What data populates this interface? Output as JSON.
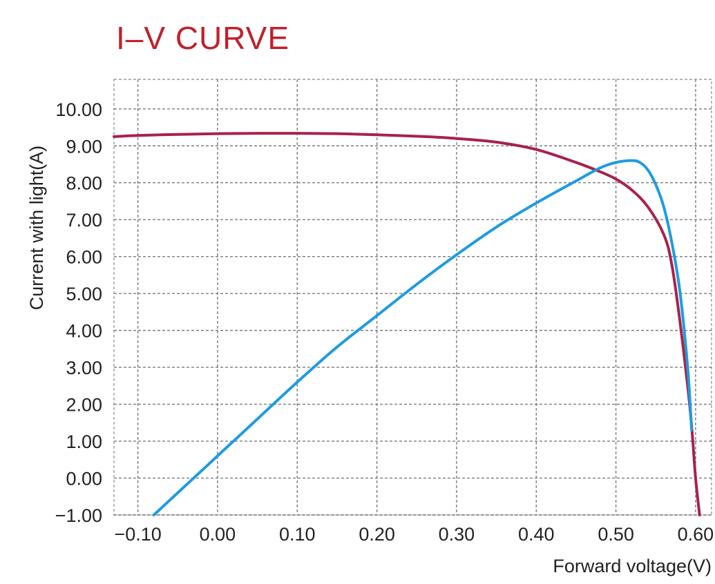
{
  "chart_data": {
    "type": "line",
    "title": "I–V  CURVE",
    "xlabel": "Forward voltage(V)",
    "ylabel": "Current with light(A)",
    "xlim": [
      -0.13,
      0.62
    ],
    "ylim": [
      -1.0,
      10.8
    ],
    "xticks": [
      -0.1,
      0.0,
      0.1,
      0.2,
      0.3,
      0.4,
      0.5,
      0.6
    ],
    "xtick_labels": [
      "−0.10",
      "0.00",
      "0.10",
      "0.20",
      "0.30",
      "0.40",
      "0.50",
      "0.60"
    ],
    "yticks": [
      -1,
      0,
      1,
      2,
      3,
      4,
      5,
      6,
      7,
      8,
      9,
      10
    ],
    "ytick_labels": [
      "−1.00",
      "0.00",
      "1.00",
      "2.00",
      "3.00",
      "4.00",
      "5.00",
      "6.00",
      "7.00",
      "8.00",
      "9.00",
      "10.00"
    ],
    "grid": true,
    "series": [
      {
        "color": "#a8224a",
        "x": [
          -0.13,
          -0.1,
          -0.05,
          0.0,
          0.05,
          0.1,
          0.15,
          0.2,
          0.25,
          0.3,
          0.35,
          0.4,
          0.45,
          0.48,
          0.5,
          0.52,
          0.54,
          0.56,
          0.57,
          0.58,
          0.59,
          0.595,
          0.6,
          0.605
        ],
        "y": [
          9.25,
          9.28,
          9.31,
          9.33,
          9.34,
          9.34,
          9.33,
          9.3,
          9.26,
          9.2,
          9.1,
          8.9,
          8.55,
          8.3,
          8.1,
          7.8,
          7.35,
          6.6,
          5.8,
          4.3,
          2.5,
          1.4,
          0.0,
          -1.0
        ]
      },
      {
        "color": "#1e9be0",
        "x": [
          -0.08,
          -0.05,
          0.0,
          0.05,
          0.1,
          0.15,
          0.2,
          0.25,
          0.3,
          0.35,
          0.4,
          0.45,
          0.48,
          0.5,
          0.52,
          0.53,
          0.54,
          0.55,
          0.56,
          0.57,
          0.58,
          0.59,
          0.595
        ],
        "y": [
          -1.0,
          -0.4,
          0.6,
          1.6,
          2.6,
          3.55,
          4.4,
          5.25,
          6.05,
          6.8,
          7.45,
          8.05,
          8.4,
          8.55,
          8.6,
          8.55,
          8.35,
          7.95,
          7.35,
          6.4,
          5.1,
          3.0,
          1.3
        ]
      }
    ]
  }
}
